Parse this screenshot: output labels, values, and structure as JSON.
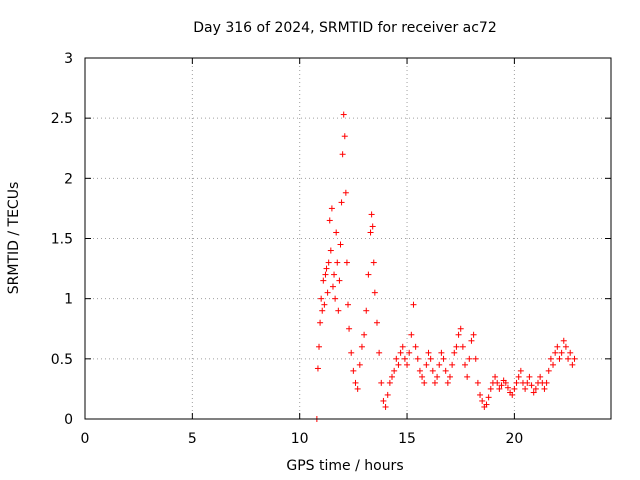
{
  "chart_data": {
    "type": "scatter",
    "title": "Day 316 of 2024, SRMTID for receiver ac72",
    "xlabel": "GPS time / hours",
    "ylabel": "SRMTID / TECUs",
    "xlim": [
      0,
      24.5
    ],
    "ylim": [
      0,
      3
    ],
    "xticks": [
      0,
      5,
      10,
      15,
      20
    ],
    "yticks": [
      0,
      0.5,
      1,
      1.5,
      2,
      2.5,
      3
    ],
    "ytick_labels": [
      "0",
      "0.5",
      "1",
      "1.5",
      "2",
      "2.5",
      "3"
    ],
    "grid": true,
    "marker": "+",
    "color": "#ff0000",
    "series": [
      {
        "name": "SRMTID",
        "points": [
          [
            10.8,
            0.0
          ],
          [
            10.85,
            0.42
          ],
          [
            10.9,
            0.6
          ],
          [
            10.95,
            0.8
          ],
          [
            11.0,
            1.0
          ],
          [
            11.05,
            0.9
          ],
          [
            11.1,
            1.15
          ],
          [
            11.15,
            0.95
          ],
          [
            11.2,
            1.2
          ],
          [
            11.25,
            1.25
          ],
          [
            11.3,
            1.05
          ],
          [
            11.35,
            1.3
          ],
          [
            11.4,
            1.65
          ],
          [
            11.45,
            1.4
          ],
          [
            11.5,
            1.75
          ],
          [
            11.55,
            1.1
          ],
          [
            11.6,
            1.2
          ],
          [
            11.65,
            1.0
          ],
          [
            11.7,
            1.55
          ],
          [
            11.75,
            1.3
          ],
          [
            11.8,
            0.9
          ],
          [
            11.85,
            1.15
          ],
          [
            11.9,
            1.45
          ],
          [
            11.95,
            1.8
          ],
          [
            12.0,
            2.2
          ],
          [
            12.05,
            2.53
          ],
          [
            12.1,
            2.35
          ],
          [
            12.15,
            1.88
          ],
          [
            12.2,
            1.3
          ],
          [
            12.25,
            0.95
          ],
          [
            12.3,
            0.75
          ],
          [
            12.4,
            0.55
          ],
          [
            12.5,
            0.4
          ],
          [
            12.6,
            0.3
          ],
          [
            12.7,
            0.25
          ],
          [
            12.8,
            0.45
          ],
          [
            12.9,
            0.6
          ],
          [
            13.0,
            0.7
          ],
          [
            13.1,
            0.9
          ],
          [
            13.2,
            1.2
          ],
          [
            13.3,
            1.55
          ],
          [
            13.35,
            1.7
          ],
          [
            13.4,
            1.6
          ],
          [
            13.45,
            1.3
          ],
          [
            13.5,
            1.05
          ],
          [
            13.6,
            0.8
          ],
          [
            13.7,
            0.55
          ],
          [
            13.8,
            0.3
          ],
          [
            13.9,
            0.15
          ],
          [
            14.0,
            0.1
          ],
          [
            14.1,
            0.2
          ],
          [
            14.2,
            0.3
          ],
          [
            14.3,
            0.35
          ],
          [
            14.4,
            0.4
          ],
          [
            14.5,
            0.5
          ],
          [
            14.6,
            0.45
          ],
          [
            14.7,
            0.55
          ],
          [
            14.8,
            0.6
          ],
          [
            14.9,
            0.5
          ],
          [
            15.0,
            0.45
          ],
          [
            15.1,
            0.55
          ],
          [
            15.2,
            0.7
          ],
          [
            15.3,
            0.95
          ],
          [
            15.4,
            0.6
          ],
          [
            15.5,
            0.5
          ],
          [
            15.6,
            0.4
          ],
          [
            15.7,
            0.35
          ],
          [
            15.8,
            0.3
          ],
          [
            15.9,
            0.45
          ],
          [
            16.0,
            0.55
          ],
          [
            16.1,
            0.5
          ],
          [
            16.2,
            0.4
          ],
          [
            16.3,
            0.3
          ],
          [
            16.4,
            0.35
          ],
          [
            16.5,
            0.45
          ],
          [
            16.6,
            0.55
          ],
          [
            16.7,
            0.5
          ],
          [
            16.8,
            0.4
          ],
          [
            16.9,
            0.3
          ],
          [
            17.0,
            0.35
          ],
          [
            17.1,
            0.45
          ],
          [
            17.2,
            0.55
          ],
          [
            17.3,
            0.6
          ],
          [
            17.4,
            0.7
          ],
          [
            17.5,
            0.75
          ],
          [
            17.6,
            0.6
          ],
          [
            17.7,
            0.45
          ],
          [
            17.8,
            0.35
          ],
          [
            17.9,
            0.5
          ],
          [
            18.0,
            0.65
          ],
          [
            18.1,
            0.7
          ],
          [
            18.2,
            0.5
          ],
          [
            18.3,
            0.3
          ],
          [
            18.4,
            0.2
          ],
          [
            18.5,
            0.15
          ],
          [
            18.6,
            0.1
          ],
          [
            18.7,
            0.12
          ],
          [
            18.8,
            0.18
          ],
          [
            18.9,
            0.25
          ],
          [
            19.0,
            0.3
          ],
          [
            19.1,
            0.35
          ],
          [
            19.2,
            0.3
          ],
          [
            19.3,
            0.25
          ],
          [
            19.4,
            0.28
          ],
          [
            19.5,
            0.32
          ],
          [
            19.6,
            0.3
          ],
          [
            19.7,
            0.26
          ],
          [
            19.8,
            0.22
          ],
          [
            19.9,
            0.2
          ],
          [
            20.0,
            0.25
          ],
          [
            20.1,
            0.3
          ],
          [
            20.2,
            0.35
          ],
          [
            20.3,
            0.4
          ],
          [
            20.4,
            0.3
          ],
          [
            20.5,
            0.25
          ],
          [
            20.6,
            0.3
          ],
          [
            20.7,
            0.35
          ],
          [
            20.8,
            0.28
          ],
          [
            20.9,
            0.22
          ],
          [
            21.0,
            0.25
          ],
          [
            21.1,
            0.3
          ],
          [
            21.2,
            0.35
          ],
          [
            21.3,
            0.3
          ],
          [
            21.4,
            0.25
          ],
          [
            21.5,
            0.3
          ],
          [
            21.6,
            0.4
          ],
          [
            21.7,
            0.5
          ],
          [
            21.8,
            0.45
          ],
          [
            21.9,
            0.55
          ],
          [
            22.0,
            0.6
          ],
          [
            22.1,
            0.5
          ],
          [
            22.2,
            0.55
          ],
          [
            22.3,
            0.65
          ],
          [
            22.4,
            0.6
          ],
          [
            22.5,
            0.5
          ],
          [
            22.6,
            0.55
          ],
          [
            22.7,
            0.45
          ],
          [
            22.8,
            0.5
          ]
        ]
      }
    ]
  }
}
